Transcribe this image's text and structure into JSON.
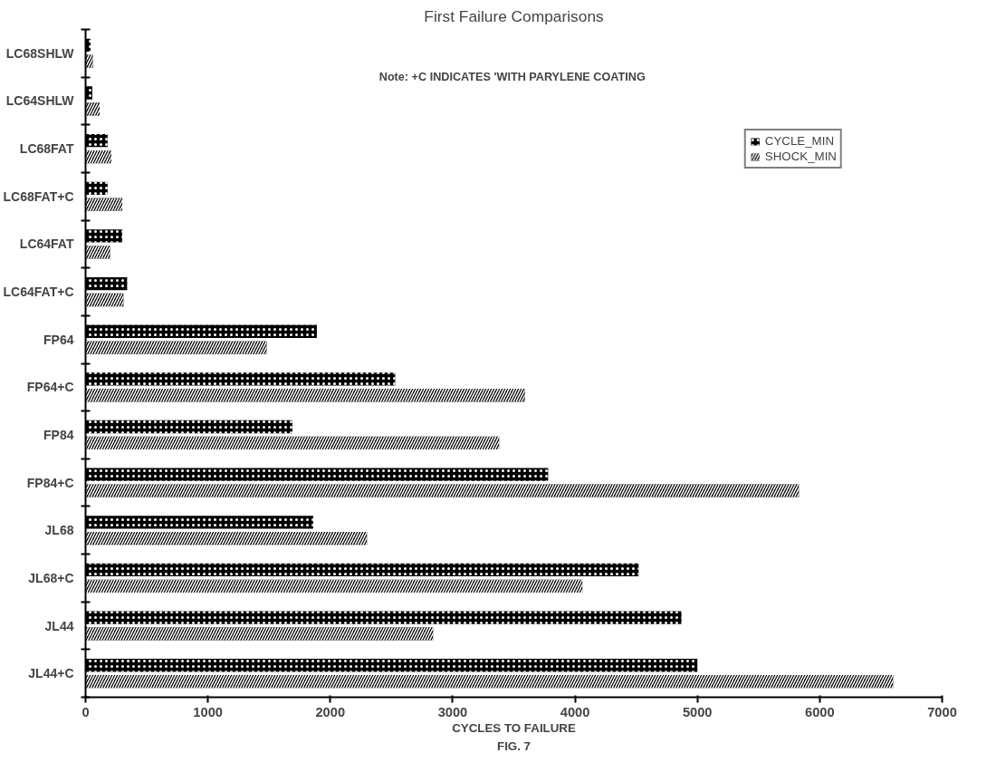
{
  "chart_data": {
    "type": "bar",
    "orientation": "horizontal",
    "title": "First Failure Comparisons",
    "xlabel": "CYCLES TO FAILURE",
    "annotations": [
      "Note: +C  INDICATES 'WITH PARYLENE COATING",
      "FIG. 7"
    ],
    "categories": [
      "LC68SHLW",
      "LC64SHLW",
      "LC68FAT",
      "LC68FAT+C",
      "LC64FAT",
      "LC64FAT+C",
      "FP64",
      "FP64+C",
      "FP84",
      "FP84+C",
      "JL68",
      "JL68+C",
      "JL44",
      "JL44+C"
    ],
    "series": [
      {
        "name": "CYCLE_MIN",
        "color": "#000000",
        "values": [
          40,
          55,
          180,
          180,
          300,
          340,
          1890,
          2530,
          1690,
          3780,
          1860,
          4520,
          4870,
          5000
        ]
      },
      {
        "name": "SHOCK_MIN",
        "color": "#000000",
        "values": [
          60,
          115,
          210,
          300,
          200,
          310,
          1480,
          3590,
          3380,
          5830,
          2300,
          4060,
          2840,
          6600
        ]
      }
    ],
    "xlim": [
      0,
      7000
    ],
    "xticks": [
      0,
      1000,
      2000,
      3000,
      4000,
      5000,
      6000,
      7000
    ],
    "grid": false,
    "legend": "top right"
  }
}
